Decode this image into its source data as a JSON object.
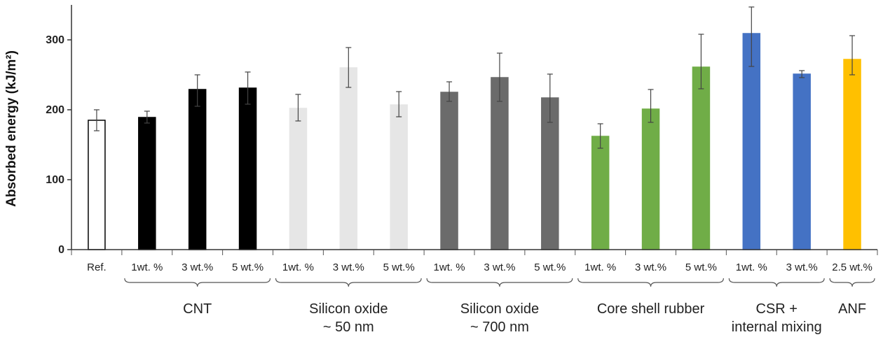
{
  "chart_data": {
    "type": "bar",
    "title": "",
    "xlabel": "",
    "ylabel": "Absorbed energy (kJ/m²)",
    "ylim": [
      0,
      350
    ],
    "yticks": [
      0,
      100,
      200,
      300
    ],
    "grid": false,
    "bars": [
      {
        "label": "Ref.",
        "group": 0,
        "value": 185,
        "err_low": 170,
        "err_high": 200,
        "color": "#ffffff",
        "edge": "#000000"
      },
      {
        "label": "1wt. %",
        "group": 1,
        "value": 189,
        "err_low": 181,
        "err_high": 198,
        "color": "#000000",
        "edge": "#000000"
      },
      {
        "label": "3 wt.%",
        "group": 1,
        "value": 229,
        "err_low": 205,
        "err_high": 250,
        "color": "#000000",
        "edge": "#000000"
      },
      {
        "label": "5 wt.%",
        "group": 1,
        "value": 231,
        "err_low": 208,
        "err_high": 254,
        "color": "#000000",
        "edge": "#000000"
      },
      {
        "label": "1wt. %",
        "group": 2,
        "value": 202,
        "err_low": 184,
        "err_high": 222,
        "color": "#e6e6e6",
        "edge": "#e6e6e6"
      },
      {
        "label": "3 wt.%",
        "group": 2,
        "value": 260,
        "err_low": 232,
        "err_high": 289,
        "color": "#e6e6e6",
        "edge": "#e6e6e6"
      },
      {
        "label": "5 wt.%",
        "group": 2,
        "value": 207,
        "err_low": 190,
        "err_high": 226,
        "color": "#e6e6e6",
        "edge": "#e6e6e6"
      },
      {
        "label": "1wt. %",
        "group": 3,
        "value": 225,
        "err_low": 212,
        "err_high": 240,
        "color": "#6b6b6b",
        "edge": "#6b6b6b"
      },
      {
        "label": "3 wt.%",
        "group": 3,
        "value": 246,
        "err_low": 212,
        "err_high": 281,
        "color": "#6b6b6b",
        "edge": "#6b6b6b"
      },
      {
        "label": "5 wt.%",
        "group": 3,
        "value": 217,
        "err_low": 182,
        "err_high": 251,
        "color": "#6b6b6b",
        "edge": "#6b6b6b"
      },
      {
        "label": "1wt. %",
        "group": 4,
        "value": 162,
        "err_low": 145,
        "err_high": 180,
        "color": "#70ad47",
        "edge": "#70ad47"
      },
      {
        "label": "3 wt.%",
        "group": 4,
        "value": 201,
        "err_low": 182,
        "err_high": 229,
        "color": "#70ad47",
        "edge": "#70ad47"
      },
      {
        "label": "5 wt.%",
        "group": 4,
        "value": 261,
        "err_low": 230,
        "err_high": 308,
        "color": "#70ad47",
        "edge": "#70ad47"
      },
      {
        "label": "1wt. %",
        "group": 5,
        "value": 309,
        "err_low": 262,
        "err_high": 347,
        "color": "#4472c4",
        "edge": "#4472c4"
      },
      {
        "label": "3 wt.%",
        "group": 5,
        "value": 251,
        "err_low": 246,
        "err_high": 256,
        "color": "#4472c4",
        "edge": "#4472c4"
      },
      {
        "label": "2.5 wt.%",
        "group": 6,
        "value": 272,
        "err_low": 250,
        "err_high": 306,
        "color": "#ffc000",
        "edge": "#ffc000"
      }
    ],
    "groups": [
      {
        "lines": [
          "CNT"
        ]
      },
      {
        "lines": [
          "Silicon oxide",
          "~ 50 nm"
        ]
      },
      {
        "lines": [
          "Silicon oxide",
          "~ 700 nm"
        ]
      },
      {
        "lines": [
          "Core shell rubber"
        ]
      },
      {
        "lines": [
          "CSR +",
          "internal mixing"
        ]
      },
      {
        "lines": [
          "ANF"
        ]
      }
    ]
  }
}
